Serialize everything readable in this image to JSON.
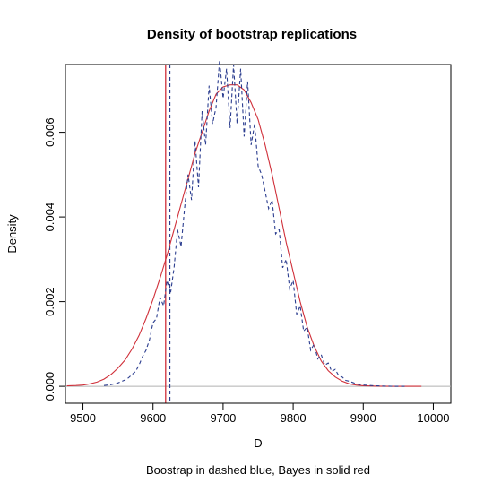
{
  "chart_data": {
    "type": "line",
    "title": "Density of bootstrap replications",
    "xlabel": "D",
    "ylabel": "Density",
    "subtitle": "Boostrap in dashed blue, Bayes in solid red",
    "xlim": [
      9475,
      10025
    ],
    "ylim": [
      -0.0004,
      0.0076
    ],
    "x_ticks": [
      9500,
      9600,
      9700,
      9800,
      9900,
      10000
    ],
    "x_tick_labels": [
      "9500",
      "9600",
      "9700",
      "9800",
      "9900",
      "10000"
    ],
    "y_ticks": [
      0.0,
      0.002,
      0.004,
      0.006
    ],
    "y_tick_labels": [
      "0.000",
      "0.002",
      "0.004",
      "0.006"
    ],
    "zero_line": {
      "y": 0,
      "color": "#b0b0b0"
    },
    "vlines": [
      {
        "name": "bayes-vline",
        "x": 9618,
        "color": "#d0303a",
        "style": "solid"
      },
      {
        "name": "bootstrap-vline",
        "x": 9624,
        "color": "#2b3d8f",
        "style": "dashed"
      }
    ],
    "series": [
      {
        "key": "bayes",
        "color": "#d0303a",
        "style": "solid",
        "x": [
          9477,
          9490,
          9500,
          9510,
          9520,
          9530,
          9540,
          9550,
          9560,
          9570,
          9580,
          9590,
          9600,
          9610,
          9620,
          9630,
          9640,
          9650,
          9660,
          9670,
          9680,
          9690,
          9700,
          9710,
          9720,
          9730,
          9740,
          9750,
          9760,
          9770,
          9780,
          9790,
          9800,
          9810,
          9820,
          9830,
          9840,
          9850,
          9860,
          9870,
          9880,
          9890,
          9900,
          9920,
          9940,
          9960,
          9983
        ],
        "y": [
          1e-05,
          2e-05,
          3e-05,
          6e-05,
          0.0001,
          0.00017,
          0.00028,
          0.00043,
          0.00062,
          0.00088,
          0.0012,
          0.0016,
          0.00205,
          0.00255,
          0.0031,
          0.0037,
          0.0043,
          0.0049,
          0.0055,
          0.006,
          0.0065,
          0.0069,
          0.00707,
          0.00712,
          0.00712,
          0.007,
          0.0067,
          0.0063,
          0.0057,
          0.005,
          0.0042,
          0.0034,
          0.0027,
          0.002,
          0.0014,
          0.00095,
          0.0006,
          0.00037,
          0.00022,
          0.00012,
          6e-05,
          3e-05,
          1.5e-05,
          5e-06,
          1e-06,
          0,
          0
        ]
      },
      {
        "key": "bootstrap",
        "color": "#2b3d8f",
        "style": "dashed",
        "x": [
          9530,
          9540,
          9550,
          9560,
          9565,
          9570,
          9575,
          9580,
          9585,
          9590,
          9595,
          9600,
          9605,
          9610,
          9615,
          9620,
          9625,
          9630,
          9635,
          9640,
          9645,
          9650,
          9655,
          9660,
          9665,
          9670,
          9675,
          9680,
          9685,
          9690,
          9695,
          9700,
          9705,
          9710,
          9715,
          9720,
          9725,
          9730,
          9735,
          9740,
          9745,
          9750,
          9755,
          9760,
          9765,
          9770,
          9775,
          9780,
          9785,
          9790,
          9795,
          9800,
          9805,
          9810,
          9815,
          9820,
          9825,
          9830,
          9835,
          9840,
          9845,
          9850,
          9855,
          9860,
          9865,
          9870,
          9875,
          9880,
          9885,
          9890,
          9895,
          9900,
          9910,
          9920,
          9930,
          9940,
          9950,
          9960
        ],
        "y": [
          2e-05,
          4e-05,
          8e-05,
          0.00015,
          0.0002,
          0.00028,
          0.00035,
          0.0005,
          0.0007,
          0.00085,
          0.0011,
          0.0015,
          0.0016,
          0.0021,
          0.0019,
          0.0025,
          0.0022,
          0.0028,
          0.0037,
          0.0033,
          0.0042,
          0.005,
          0.0044,
          0.0058,
          0.0047,
          0.0065,
          0.0057,
          0.0071,
          0.0062,
          0.0066,
          0.0077,
          0.0068,
          0.0075,
          0.0061,
          0.0076,
          0.0062,
          0.0075,
          0.0059,
          0.0072,
          0.0057,
          0.0062,
          0.0052,
          0.005,
          0.0046,
          0.0042,
          0.0044,
          0.0036,
          0.0037,
          0.0028,
          0.003,
          0.0023,
          0.0025,
          0.0017,
          0.0019,
          0.0013,
          0.0014,
          0.00085,
          0.001,
          0.00065,
          0.00075,
          0.0005,
          0.00055,
          0.00035,
          0.0004,
          0.00025,
          0.00022,
          0.00014,
          0.00012,
          9e-05,
          6e-05,
          4e-05,
          3e-05,
          2e-05,
          1e-05,
          5e-06,
          2e-06,
          1e-06,
          0
        ]
      }
    ]
  }
}
